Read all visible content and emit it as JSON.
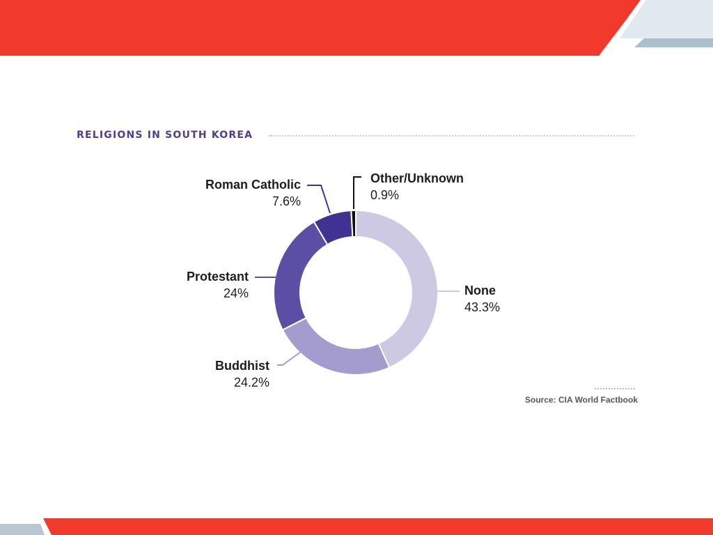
{
  "chart_data": {
    "type": "pie",
    "title": "RELIGIONS IN SOUTH KOREA",
    "categories": [
      "None",
      "Buddhist",
      "Protestant",
      "Roman Catholic",
      "Other/Unknown"
    ],
    "values": [
      43.3,
      24.2,
      24,
      7.6,
      0.9
    ],
    "value_labels": [
      "43.3%",
      "24.2%",
      "24%",
      "7.6%",
      "0.9%"
    ],
    "colors": [
      "#cdc9e3",
      "#a49ccf",
      "#5b4fa5",
      "#3f3293",
      "#111111"
    ],
    "donut": true,
    "legend": "none",
    "grid": false
  },
  "source": "Source: CIA World Factbook",
  "theme": {
    "banner_red": "#f23a2c",
    "accent_light": "#dfe9ee",
    "accent_mid": "#a9c1cf",
    "title_color": "#4a3f93"
  }
}
